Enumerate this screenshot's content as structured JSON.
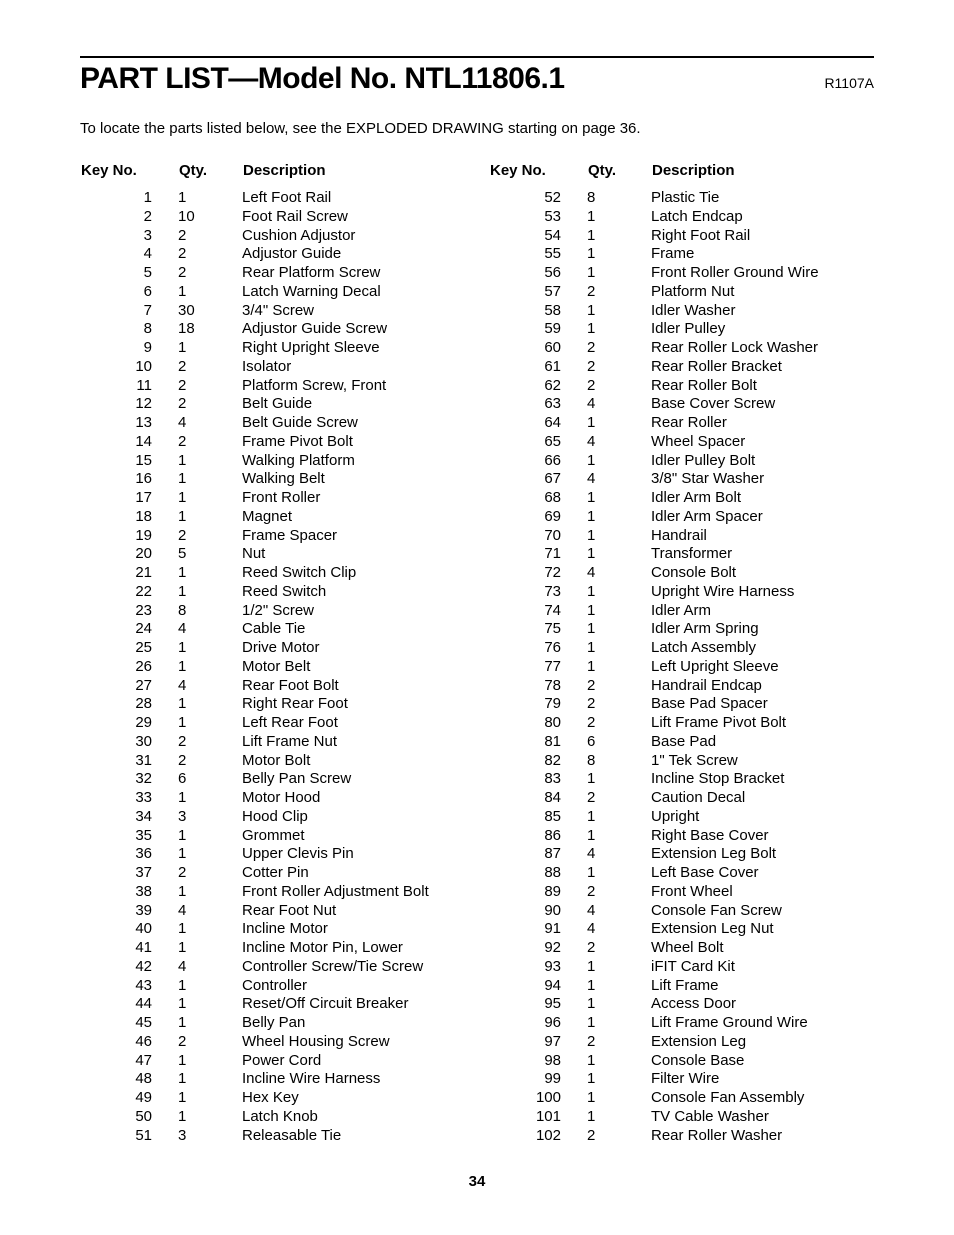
{
  "header": {
    "title": "PART LIST—Model No. NTL11806.1",
    "revision": "R1107A"
  },
  "intro": "To locate the parts listed below, see the EXPLODED DRAWING starting on page 36.",
  "table_headers": {
    "keyno": "Key No.",
    "qty": "Qty.",
    "desc": "Description"
  },
  "left": [
    {
      "k": "1",
      "q": "1",
      "d": "Left Foot Rail"
    },
    {
      "k": "2",
      "q": "10",
      "d": "Foot Rail Screw"
    },
    {
      "k": "3",
      "q": "2",
      "d": "Cushion Adjustor"
    },
    {
      "k": "4",
      "q": "2",
      "d": "Adjustor Guide"
    },
    {
      "k": "5",
      "q": "2",
      "d": "Rear Platform Screw"
    },
    {
      "k": "6",
      "q": "1",
      "d": "Latch Warning Decal"
    },
    {
      "k": "7",
      "q": "30",
      "d": "3/4\" Screw"
    },
    {
      "k": "8",
      "q": "18",
      "d": "Adjustor Guide Screw"
    },
    {
      "k": "9",
      "q": "1",
      "d": "Right Upright Sleeve"
    },
    {
      "k": "10",
      "q": "2",
      "d": "Isolator"
    },
    {
      "k": "11",
      "q": "2",
      "d": "Platform Screw, Front"
    },
    {
      "k": "12",
      "q": "2",
      "d": "Belt Guide"
    },
    {
      "k": "13",
      "q": "4",
      "d": "Belt Guide Screw"
    },
    {
      "k": "14",
      "q": "2",
      "d": "Frame Pivot Bolt"
    },
    {
      "k": "15",
      "q": "1",
      "d": "Walking Platform"
    },
    {
      "k": "16",
      "q": "1",
      "d": "Walking Belt"
    },
    {
      "k": "17",
      "q": "1",
      "d": "Front Roller"
    },
    {
      "k": "18",
      "q": "1",
      "d": "Magnet"
    },
    {
      "k": "19",
      "q": "2",
      "d": "Frame Spacer"
    },
    {
      "k": "20",
      "q": "5",
      "d": "Nut"
    },
    {
      "k": "21",
      "q": "1",
      "d": "Reed Switch Clip"
    },
    {
      "k": "22",
      "q": "1",
      "d": "Reed Switch"
    },
    {
      "k": "23",
      "q": "8",
      "d": "1/2\" Screw"
    },
    {
      "k": "24",
      "q": "4",
      "d": "Cable Tie"
    },
    {
      "k": "25",
      "q": "1",
      "d": "Drive Motor"
    },
    {
      "k": "26",
      "q": "1",
      "d": "Motor Belt"
    },
    {
      "k": "27",
      "q": "4",
      "d": "Rear Foot Bolt"
    },
    {
      "k": "28",
      "q": "1",
      "d": "Right Rear Foot"
    },
    {
      "k": "29",
      "q": "1",
      "d": "Left Rear Foot"
    },
    {
      "k": "30",
      "q": "2",
      "d": "Lift Frame Nut"
    },
    {
      "k": "31",
      "q": "2",
      "d": "Motor Bolt"
    },
    {
      "k": "32",
      "q": "6",
      "d": "Belly Pan Screw"
    },
    {
      "k": "33",
      "q": "1",
      "d": "Motor Hood"
    },
    {
      "k": "34",
      "q": "3",
      "d": "Hood Clip"
    },
    {
      "k": "35",
      "q": "1",
      "d": "Grommet"
    },
    {
      "k": "36",
      "q": "1",
      "d": "Upper Clevis Pin"
    },
    {
      "k": "37",
      "q": "2",
      "d": "Cotter Pin"
    },
    {
      "k": "38",
      "q": "1",
      "d": "Front Roller Adjustment Bolt"
    },
    {
      "k": "39",
      "q": "4",
      "d": "Rear Foot Nut"
    },
    {
      "k": "40",
      "q": "1",
      "d": "Incline Motor"
    },
    {
      "k": "41",
      "q": "1",
      "d": "Incline Motor Pin, Lower"
    },
    {
      "k": "42",
      "q": "4",
      "d": "Controller Screw/Tie Screw"
    },
    {
      "k": "43",
      "q": "1",
      "d": "Controller"
    },
    {
      "k": "44",
      "q": "1",
      "d": "Reset/Off Circuit Breaker"
    },
    {
      "k": "45",
      "q": "1",
      "d": "Belly Pan"
    },
    {
      "k": "46",
      "q": "2",
      "d": "Wheel Housing Screw"
    },
    {
      "k": "47",
      "q": "1",
      "d": "Power Cord"
    },
    {
      "k": "48",
      "q": "1",
      "d": "Incline Wire Harness"
    },
    {
      "k": "49",
      "q": "1",
      "d": "Hex Key"
    },
    {
      "k": "50",
      "q": "1",
      "d": "Latch Knob"
    },
    {
      "k": "51",
      "q": "3",
      "d": "Releasable Tie"
    }
  ],
  "right": [
    {
      "k": "52",
      "q": "8",
      "d": "Plastic Tie"
    },
    {
      "k": "53",
      "q": "1",
      "d": "Latch Endcap"
    },
    {
      "k": "54",
      "q": "1",
      "d": "Right Foot Rail"
    },
    {
      "k": "55",
      "q": "1",
      "d": "Frame"
    },
    {
      "k": "56",
      "q": "1",
      "d": "Front Roller Ground Wire"
    },
    {
      "k": "57",
      "q": "2",
      "d": "Platform Nut"
    },
    {
      "k": "58",
      "q": "1",
      "d": "Idler Washer"
    },
    {
      "k": "59",
      "q": "1",
      "d": "Idler Pulley"
    },
    {
      "k": "60",
      "q": "2",
      "d": "Rear Roller Lock Washer"
    },
    {
      "k": "61",
      "q": "2",
      "d": "Rear Roller Bracket"
    },
    {
      "k": "62",
      "q": "2",
      "d": "Rear Roller Bolt"
    },
    {
      "k": "63",
      "q": "4",
      "d": "Base Cover Screw"
    },
    {
      "k": "64",
      "q": "1",
      "d": "Rear Roller"
    },
    {
      "k": "65",
      "q": "4",
      "d": "Wheel Spacer"
    },
    {
      "k": "66",
      "q": "1",
      "d": "Idler Pulley Bolt"
    },
    {
      "k": "67",
      "q": "4",
      "d": "3/8\" Star Washer"
    },
    {
      "k": "68",
      "q": "1",
      "d": "Idler Arm Bolt"
    },
    {
      "k": "69",
      "q": "1",
      "d": "Idler Arm Spacer"
    },
    {
      "k": "70",
      "q": "1",
      "d": "Handrail"
    },
    {
      "k": "71",
      "q": "1",
      "d": "Transformer"
    },
    {
      "k": "72",
      "q": "4",
      "d": "Console Bolt"
    },
    {
      "k": "73",
      "q": "1",
      "d": "Upright Wire Harness"
    },
    {
      "k": "74",
      "q": "1",
      "d": "Idler Arm"
    },
    {
      "k": "75",
      "q": "1",
      "d": "Idler Arm Spring"
    },
    {
      "k": "76",
      "q": "1",
      "d": "Latch Assembly"
    },
    {
      "k": "77",
      "q": "1",
      "d": "Left Upright Sleeve"
    },
    {
      "k": "78",
      "q": "2",
      "d": "Handrail Endcap"
    },
    {
      "k": "79",
      "q": "2",
      "d": "Base Pad Spacer"
    },
    {
      "k": "80",
      "q": "2",
      "d": "Lift Frame Pivot Bolt"
    },
    {
      "k": "81",
      "q": "6",
      "d": "Base Pad"
    },
    {
      "k": "82",
      "q": "8",
      "d": "1\" Tek Screw"
    },
    {
      "k": "83",
      "q": "1",
      "d": "Incline Stop Bracket"
    },
    {
      "k": "84",
      "q": "2",
      "d": "Caution Decal"
    },
    {
      "k": "85",
      "q": "1",
      "d": "Upright"
    },
    {
      "k": "86",
      "q": "1",
      "d": "Right Base Cover"
    },
    {
      "k": "87",
      "q": "4",
      "d": "Extension Leg Bolt"
    },
    {
      "k": "88",
      "q": "1",
      "d": "Left Base Cover"
    },
    {
      "k": "89",
      "q": "2",
      "d": "Front Wheel"
    },
    {
      "k": "90",
      "q": "4",
      "d": "Console Fan Screw"
    },
    {
      "k": "91",
      "q": "4",
      "d": "Extension Leg Nut"
    },
    {
      "k": "92",
      "q": "2",
      "d": "Wheel Bolt"
    },
    {
      "k": "93",
      "q": "1",
      "d": "iFIT Card Kit"
    },
    {
      "k": "94",
      "q": "1",
      "d": "Lift Frame"
    },
    {
      "k": "95",
      "q": "1",
      "d": "Access Door"
    },
    {
      "k": "96",
      "q": "1",
      "d": "Lift Frame Ground Wire"
    },
    {
      "k": "97",
      "q": "2",
      "d": "Extension Leg"
    },
    {
      "k": "98",
      "q": "1",
      "d": "Console Base"
    },
    {
      "k": "99",
      "q": "1",
      "d": "Filter Wire"
    },
    {
      "k": "100",
      "q": "1",
      "d": "Console Fan Assembly"
    },
    {
      "k": "101",
      "q": "1",
      "d": "TV Cable Washer"
    },
    {
      "k": "102",
      "q": "2",
      "d": "Rear Roller Washer"
    }
  ],
  "page_number": "34"
}
